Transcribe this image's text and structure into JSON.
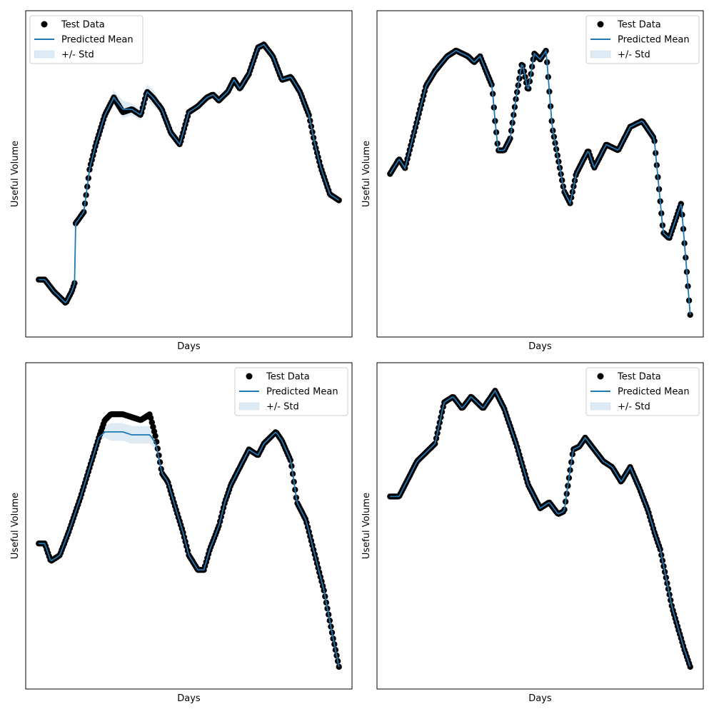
{
  "figure": {
    "background": "#ffffff",
    "colors": {
      "test_data": "#000000",
      "predicted_mean": "#1f77b4",
      "std_band": "#1f77b4",
      "frame": "#000000"
    }
  },
  "chart_data": [
    {
      "type": "line",
      "title": "",
      "xlabel": "Days",
      "ylabel": "Useful Volume",
      "xticks": "none",
      "yticks": "none",
      "grid": false,
      "legend": {
        "placement": "top-left",
        "entries": [
          "Test Data",
          "Predicted Mean",
          "+/- Std"
        ]
      },
      "xlim": [
        0,
        100
      ],
      "ylim": [
        0,
        100
      ],
      "series_keypoints": {
        "x": [
          0,
          2,
          5,
          9,
          11,
          12,
          12.2,
          15,
          17,
          19,
          22,
          25,
          28,
          31,
          34,
          36,
          38,
          41,
          44,
          47,
          50,
          53,
          56,
          58,
          60,
          63,
          65,
          67,
          70,
          73,
          75,
          78,
          81,
          84,
          87,
          90,
          92,
          94,
          97,
          100
        ],
        "test_data": [
          14,
          14,
          10,
          6,
          10,
          13,
          33,
          37,
          52,
          60,
          70,
          76,
          71,
          72,
          70,
          78,
          76,
          72,
          64,
          60,
          71,
          73,
          76,
          77,
          75,
          78,
          82,
          79,
          84,
          93,
          94,
          90,
          82,
          83,
          78,
          70,
          60,
          52,
          43,
          41
        ],
        "predicted_mean": [
          14,
          14,
          10,
          6,
          10,
          13,
          33,
          37,
          52,
          60,
          70,
          76,
          72,
          72,
          70,
          78,
          76,
          72,
          64,
          60,
          71,
          73,
          76,
          77,
          75,
          78,
          82,
          79,
          84,
          93,
          94,
          90,
          82,
          83,
          78,
          70,
          60,
          52,
          43,
          41
        ],
        "std": [
          0.5,
          0.5,
          0.5,
          1,
          0.5,
          0.5,
          0.5,
          0.5,
          0.8,
          1,
          1.5,
          2.5,
          3,
          2,
          2,
          2.5,
          3,
          1.5,
          1,
          0.8,
          1.5,
          1,
          1,
          1,
          1,
          1,
          1,
          1,
          1,
          1.5,
          1.5,
          1,
          1,
          1.5,
          1,
          0.5,
          0.5,
          0.5,
          0.5,
          0.5
        ]
      }
    },
    {
      "type": "line",
      "title": "",
      "xlabel": "Days",
      "ylabel": "Useful Volume",
      "xticks": "none",
      "yticks": "none",
      "grid": false,
      "legend": {
        "placement": "top-right",
        "entries": [
          "Test Data",
          "Predicted Mean",
          "+/- Std"
        ]
      },
      "xlim": [
        0,
        100
      ],
      "ylim": [
        0,
        100
      ],
      "series_keypoints": {
        "x": [
          0,
          3,
          5,
          8,
          12,
          15,
          19,
          22,
          26,
          28,
          30,
          34,
          35,
          36,
          38,
          40,
          42,
          44,
          46,
          48,
          50,
          52,
          54,
          56,
          58,
          60,
          62,
          66,
          68,
          70,
          72,
          76,
          80,
          84,
          88,
          91,
          93,
          95,
          97,
          100
        ],
        "test_data": [
          50,
          55,
          52,
          64,
          80,
          85,
          90,
          92,
          90,
          88,
          90,
          80,
          68,
          58,
          58,
          62,
          76,
          88,
          78,
          91,
          89,
          92,
          66,
          55,
          44,
          40,
          50,
          58,
          52,
          56,
          60,
          58,
          66,
          68,
          62,
          30,
          28,
          34,
          40,
          2
        ],
        "predicted_mean": [
          50,
          55,
          52,
          64,
          80,
          85,
          90,
          92,
          90,
          88,
          90,
          80,
          68,
          58,
          58,
          62,
          76,
          88,
          78,
          91,
          89,
          92,
          66,
          55,
          44,
          40,
          50,
          58,
          52,
          56,
          60,
          58,
          66,
          68,
          62,
          30,
          28,
          34,
          40,
          2
        ],
        "std": [
          0.5,
          0.5,
          0.5,
          0.5,
          0.5,
          0.5,
          0.5,
          0.5,
          0.5,
          0.5,
          0.5,
          0.5,
          0.5,
          0.5,
          0.5,
          0.5,
          0.5,
          0.5,
          0.5,
          0.5,
          0.5,
          0.5,
          0.5,
          0.5,
          0.5,
          0.5,
          0.5,
          0.5,
          0.5,
          0.5,
          0.5,
          0.5,
          0.5,
          0.5,
          0.5,
          0.5,
          0.5,
          0.5,
          0.5,
          0.5
        ]
      }
    },
    {
      "type": "line",
      "title": "",
      "xlabel": "Days",
      "ylabel": "Useful Volume",
      "xticks": "none",
      "yticks": "none",
      "grid": false,
      "legend": {
        "placement": "top-right",
        "entries": [
          "Test Data",
          "Predicted Mean",
          "+/- Std"
        ]
      },
      "xlim": [
        0,
        100
      ],
      "ylim": [
        0,
        100
      ],
      "series_keypoints": {
        "x": [
          0,
          2,
          4,
          7,
          10,
          14,
          17,
          20,
          22,
          24,
          26,
          28,
          31,
          34,
          37,
          39,
          41,
          43,
          45,
          48,
          50,
          53,
          55,
          57,
          60,
          62,
          64,
          66,
          68,
          70,
          73,
          75,
          77,
          79,
          81,
          84,
          86,
          89,
          92,
          95,
          98,
          100
        ],
        "test_data": [
          44,
          44,
          38,
          40,
          48,
          60,
          70,
          80,
          86,
          88,
          88,
          88,
          87,
          86,
          88,
          80,
          68,
          65,
          58,
          48,
          40,
          35,
          35,
          42,
          50,
          58,
          64,
          68,
          72,
          76,
          74,
          78,
          80,
          82,
          79,
          72,
          58,
          52,
          40,
          28,
          12,
          2
        ],
        "predicted_mean": [
          44,
          44,
          38,
          40,
          48,
          60,
          70,
          80,
          82,
          82,
          82,
          82,
          81,
          81,
          81,
          78,
          68,
          65,
          58,
          48,
          40,
          35,
          35,
          42,
          50,
          58,
          64,
          68,
          72,
          76,
          74,
          78,
          80,
          82,
          79,
          72,
          58,
          52,
          40,
          28,
          12,
          2
        ],
        "std": [
          0.5,
          0.5,
          0.5,
          0.5,
          0.5,
          0.5,
          0.5,
          1,
          2,
          3,
          3,
          3,
          3,
          3,
          3,
          2,
          1,
          0.5,
          0.5,
          0.5,
          0.5,
          0.5,
          0.5,
          0.5,
          0.5,
          0.5,
          0.5,
          0.5,
          0.5,
          0.5,
          0.5,
          0.5,
          0.5,
          1,
          1,
          0.5,
          0.5,
          0.5,
          0.5,
          0.5,
          0.5,
          0.5
        ]
      }
    },
    {
      "type": "line",
      "title": "",
      "xlabel": "Days",
      "ylabel": "Useful Volume",
      "xticks": "none",
      "yticks": "none",
      "grid": false,
      "legend": {
        "placement": "top-right",
        "entries": [
          "Test Data",
          "Predicted Mean",
          "+/- Std"
        ]
      },
      "xlim": [
        0,
        100
      ],
      "ylim": [
        0,
        100
      ],
      "series_keypoints": {
        "x": [
          0,
          3,
          6,
          9,
          12,
          15,
          18,
          21,
          24,
          27,
          31,
          35,
          38,
          42,
          46,
          50,
          53,
          56,
          58,
          61,
          63,
          65,
          68,
          71,
          74,
          77,
          80,
          83,
          86,
          88,
          90,
          92,
          94,
          96,
          98,
          100
        ],
        "test_data": [
          60,
          60,
          66,
          72,
          75,
          78,
          92,
          94,
          90,
          94,
          90,
          96,
          90,
          78,
          64,
          56,
          58,
          54,
          55,
          76,
          77,
          80,
          76,
          72,
          70,
          65,
          70,
          63,
          55,
          48,
          42,
          32,
          22,
          15,
          8,
          2
        ],
        "predicted_mean": [
          60,
          60,
          66,
          72,
          75,
          78,
          92,
          94,
          90,
          94,
          90,
          96,
          90,
          78,
          64,
          56,
          58,
          54,
          55,
          76,
          77,
          80,
          76,
          72,
          70,
          65,
          70,
          63,
          55,
          48,
          42,
          32,
          22,
          15,
          8,
          2
        ],
        "std": [
          0.5,
          0.5,
          0.5,
          0.5,
          0.5,
          0.5,
          0.5,
          0.5,
          0.5,
          0.5,
          0.5,
          0.5,
          0.5,
          0.5,
          0.5,
          0.5,
          0.5,
          0.5,
          0.5,
          0.5,
          1,
          1,
          1,
          1,
          1,
          1,
          1,
          0.5,
          0.5,
          0.5,
          0.5,
          0.5,
          0.5,
          0.5,
          0.5,
          0.5
        ]
      }
    }
  ]
}
